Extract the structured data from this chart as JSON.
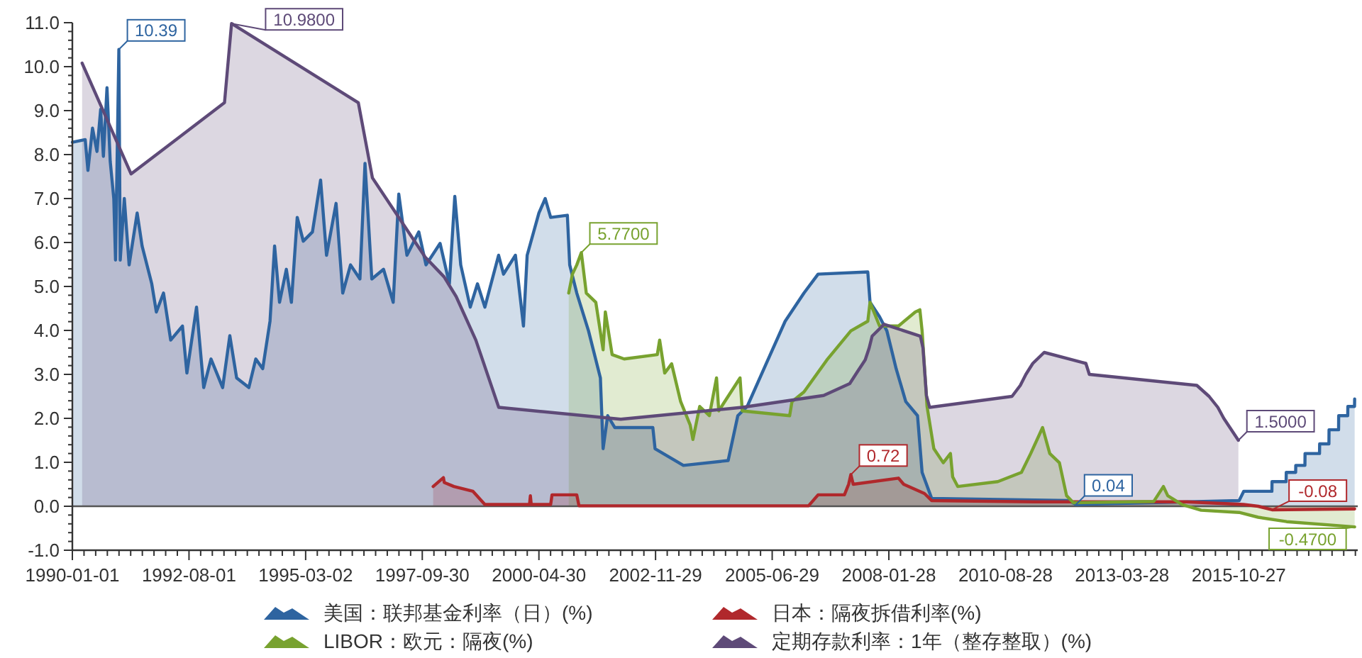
{
  "chart_data": {
    "type": "area",
    "xlim": [
      "1990-01-01",
      "2018-06-15"
    ],
    "ylim": [
      -1,
      11
    ],
    "xticks": [
      "1990-01-01",
      "1992-08-01",
      "1995-03-02",
      "1997-09-30",
      "2000-04-30",
      "2002-11-29",
      "2005-06-29",
      "2008-01-28",
      "2010-08-28",
      "2013-03-28",
      "2015-10-27"
    ],
    "yticks": [
      {
        "value": -1,
        "label": "-1.0"
      },
      {
        "value": 0,
        "label": "0.0"
      },
      {
        "value": 1,
        "label": "1.0"
      },
      {
        "value": 2,
        "label": "2.0"
      },
      {
        "value": 3,
        "label": "3.0"
      },
      {
        "value": 4,
        "label": "4.0"
      },
      {
        "value": 5,
        "label": "5.0"
      },
      {
        "value": 6,
        "label": "6.0"
      },
      {
        "value": 7,
        "label": "7.0"
      },
      {
        "value": 8,
        "label": "8.0"
      },
      {
        "value": 9,
        "label": "9.0"
      },
      {
        "value": 10,
        "label": "10.0"
      },
      {
        "value": 11,
        "label": "11.0"
      }
    ],
    "legend": "bottom",
    "ref_lines": [
      {
        "axis": "y",
        "value": 0,
        "color": "#555555"
      }
    ],
    "series": [
      {
        "name": "美国：联邦基金利率（日）(%)",
        "color": "#2e64a0",
        "x": [
          "1990-01-01",
          "1990-04-15",
          "1990-05-07",
          "1990-06-13",
          "1990-07-19",
          "1990-08-18",
          "1990-09-09",
          "1990-10-08",
          "1990-11-03",
          "1990-12-02",
          "1990-12-16",
          "1991-01-12",
          "1991-01-23",
          "1991-02-25",
          "1991-04-05",
          "1991-06-09",
          "1991-07-19",
          "1991-10-05",
          "1991-11-11",
          "1992-01-08",
          "1992-03-06",
          "1992-06-09",
          "1992-07-15",
          "1992-10-01",
          "1992-11-28",
          "1993-01-26",
          "1993-04-30",
          "1993-06-27",
          "1993-08-21",
          "1993-11-28",
          "1994-01-23",
          "1994-03-20",
          "1994-05-18",
          "1994-06-24",
          "1994-08-03",
          "1994-09-27",
          "1994-11-07",
          "1994-12-24",
          "1995-02-11",
          "1995-04-26",
          "1995-07-01",
          "1995-08-18",
          "1995-11-03",
          "1995-12-27",
          "1996-02-28",
          "1996-05-14",
          "1996-06-24",
          "1996-08-18",
          "1996-11-21",
          "1997-02-07",
          "1997-03-24",
          "1997-05-29",
          "1997-09-02",
          "1997-10-30",
          "1998-02-21",
          "1998-05-07",
          "1998-06-20",
          "1998-08-07",
          "1998-10-23",
          "1998-12-20",
          "1999-02-18",
          "1999-06-09",
          "1999-07-19",
          "1999-10-23",
          "1999-12-27",
          "2000-01-26",
          "2000-04-30",
          "2000-06-20",
          "2000-08-03",
          "2000-12-16",
          "2001-01-04",
          "2001-03-02",
          "2001-06-05",
          "2001-09-09",
          "2001-10-01",
          "2001-11-07",
          "2002-01-04",
          "2002-11-07",
          "2002-11-25",
          "2003-07-12",
          "2004-07-08",
          "2004-09-24",
          "2004-12-09",
          "2005-05-11",
          "2005-10-12",
          "2006-03-13",
          "2006-07-05",
          "2007-08-11",
          "2007-08-29",
          "2007-11-14",
          "2008-01-12",
          "2008-03-27",
          "2008-06-13",
          "2008-09-16",
          "2008-10-23",
          "2009-01-08",
          "2012-01-23",
          "2012-03-20",
          "2015-10-30",
          "2015-12-06",
          "2016-07-21",
          "2016-07-22",
          "2016-11-13",
          "2016-11-14",
          "2017-01-29",
          "2017-01-30",
          "2017-04-14",
          "2017-04-15",
          "2017-08-10",
          "2017-08-11",
          "2017-10-25",
          "2017-10-26",
          "2018-01-11",
          "2018-01-12",
          "2018-03-26",
          "2018-03-27",
          "2018-05-20",
          "2018-05-21"
        ],
        "values": [
          8.28,
          8.34,
          7.64,
          8.6,
          8.07,
          9.03,
          7.96,
          9.52,
          7.85,
          7.0,
          5.6,
          10.39,
          5.6,
          7.0,
          5.49,
          6.67,
          5.92,
          5.06,
          4.42,
          4.85,
          3.78,
          4.1,
          3.03,
          4.53,
          2.7,
          3.35,
          2.7,
          3.88,
          2.92,
          2.7,
          3.35,
          3.13,
          4.21,
          5.92,
          4.64,
          5.39,
          4.64,
          6.57,
          6.03,
          6.24,
          7.42,
          5.71,
          6.89,
          4.85,
          5.49,
          5.17,
          7.8,
          5.17,
          5.39,
          4.64,
          7.1,
          5.71,
          6.24,
          5.49,
          5.98,
          5.06,
          7.05,
          5.49,
          4.53,
          5.06,
          4.53,
          5.71,
          5.28,
          5.71,
          4.1,
          5.71,
          6.67,
          7.0,
          6.57,
          6.62,
          5.49,
          4.85,
          3.99,
          2.92,
          1.31,
          2.06,
          1.79,
          1.79,
          1.31,
          0.93,
          1.04,
          2.06,
          2.27,
          3.24,
          4.21,
          4.85,
          5.28,
          5.33,
          4.64,
          4.31,
          3.99,
          3.13,
          2.38,
          2.06,
          0.77,
          0.18,
          0.13,
          0.04,
          0.13,
          0.34,
          0.34,
          0.56,
          0.56,
          0.77,
          0.77,
          0.93,
          0.93,
          1.2,
          1.2,
          1.42,
          1.42,
          1.74,
          1.74,
          2.06,
          2.06,
          2.27,
          2.27,
          2.44
        ]
      },
      {
        "name": "日本：隔夜拆借利率(%)",
        "color": "#b0282c",
        "x": [
          "1997-12-27",
          "1998-03-20",
          "1998-03-27",
          "1998-06-13",
          "1998-11-14",
          "1999-02-18",
          "2000-02-14",
          "2000-02-21",
          "2000-02-28",
          "2000-08-03",
          "2000-08-14",
          "2001-03-02",
          "2001-03-20",
          "2006-04-19",
          "2006-07-05",
          "2007-02-03",
          "2007-03-09",
          "2007-03-27",
          "2007-04-15",
          "2008-04-15",
          "2008-05-27",
          "2008-11-11",
          "2009-01-08",
          "2011-04-19",
          "2014-09-02",
          "2015-12-06",
          "2016-04-01",
          "2016-07-22",
          "2018-05-21"
        ],
        "values": [
          0.45,
          0.65,
          0.54,
          0.45,
          0.34,
          0.04,
          0.04,
          0.24,
          0.04,
          0.04,
          0.26,
          0.26,
          0.01,
          0.01,
          0.26,
          0.26,
          0.5,
          0.72,
          0.5,
          0.64,
          0.5,
          0.29,
          0.13,
          0.1,
          0.1,
          0.04,
          0,
          -0.08,
          -0.06
        ]
      },
      {
        "name": "LIBOR：欧元：隔夜(%)",
        "color": "#78a22f",
        "x": [
          "2000-12-27",
          "2001-01-26",
          "2001-03-02",
          "2001-04-08",
          "2001-05-18",
          "2001-08-03",
          "2001-10-01",
          "2001-10-19",
          "2001-12-13",
          "2002-03-20",
          "2002-12-13",
          "2003-01-01",
          "2003-02-11",
          "2003-04-08",
          "2003-06-20",
          "2003-09-05",
          "2003-09-27",
          "2003-11-21",
          "2004-02-07",
          "2004-04-05",
          "2004-04-23",
          "2004-10-12",
          "2004-10-30",
          "2005-11-17",
          "2005-12-06",
          "2006-03-13",
          "2006-09-20",
          "2007-03-27",
          "2007-08-11",
          "2007-08-29",
          "2007-11-14",
          "2008-04-15",
          "2008-08-29",
          "2008-10-05",
          "2008-10-23",
          "2008-12-02",
          "2009-01-26",
          "2009-04-12",
          "2009-06-09",
          "2009-06-27",
          "2009-08-07",
          "2010-06-27",
          "2011-01-04",
          "2011-03-20",
          "2011-06-24",
          "2011-08-21",
          "2011-11-07",
          "2012-01-04",
          "2012-02-28",
          "2013-12-09",
          "2014-02-25",
          "2014-04-01",
          "2014-07-26",
          "2014-12-27",
          "2015-10-30",
          "2016-04-01",
          "2016-11-17",
          "2018-05-21"
        ],
        "values": [
          4.85,
          5.28,
          5.49,
          5.77,
          4.85,
          4.64,
          3.56,
          4.42,
          3.45,
          3.35,
          3.45,
          3.78,
          3.03,
          3.24,
          2.38,
          1.85,
          1.52,
          2.27,
          2.06,
          2.92,
          2.17,
          2.92,
          2.17,
          2.06,
          2.38,
          2.6,
          3.35,
          3.99,
          4.21,
          4.64,
          4.1,
          4.1,
          4.42,
          4.47,
          3.99,
          2.27,
          1.31,
          0.99,
          1.2,
          0.67,
          0.45,
          0.56,
          0.77,
          1.2,
          1.79,
          1.2,
          0.99,
          0.24,
          0.08,
          0.11,
          0.45,
          0.24,
          0.04,
          -0.09,
          -0.14,
          -0.25,
          -0.35,
          -0.47
        ]
      },
      {
        "name": "定期存款利率：1年（整存整取）(%)",
        "color": "#5e4a78",
        "x": [
          "1990-03-21",
          "1991-04-21",
          "1993-05-15",
          "1993-07-11",
          "1996-05-01",
          "1996-08-23",
          "1997-10-23",
          "1998-03-25",
          "1998-07-01",
          "1998-12-07",
          "1999-06-10",
          "2002-02-21",
          "2004-10-29",
          "2006-08-19",
          "2007-03-18",
          "2007-05-19",
          "2007-07-21",
          "2007-08-22",
          "2007-09-15",
          "2007-12-21",
          "2008-10-09",
          "2008-10-30",
          "2008-11-27",
          "2008-12-23",
          "2010-10-20",
          "2010-12-26",
          "2011-02-09",
          "2011-04-06",
          "2011-07-07",
          "2012-06-08",
          "2012-07-06",
          "2014-11-22",
          "2015-03-01",
          "2015-05-11",
          "2015-06-28",
          "2015-08-26",
          "2015-10-24"
        ],
        "values": [
          10.08,
          7.56,
          9.18,
          10.98,
          9.18,
          7.47,
          5.67,
          5.22,
          4.77,
          3.78,
          2.25,
          1.98,
          2.25,
          2.52,
          2.79,
          3.06,
          3.33,
          3.6,
          3.87,
          4.14,
          3.87,
          3.6,
          2.52,
          2.25,
          2.5,
          2.75,
          3.0,
          3.25,
          3.5,
          3.25,
          3.0,
          2.75,
          2.5,
          2.25,
          2.0,
          1.75,
          1.5
        ]
      }
    ],
    "annotations": [
      {
        "text": "10.39",
        "x": "1991-01-12",
        "y": 10.39
      },
      {
        "text": "10.9800",
        "x": "1993-07-11",
        "y": 10.98
      },
      {
        "text": "5.7700",
        "x": "2001-04-08",
        "y": 5.77
      },
      {
        "text": "0.72",
        "x": "2007-03-27",
        "y": 0.72
      },
      {
        "text": "0.04",
        "x": "2012-03-20",
        "y": 0.04
      },
      {
        "text": "1.5000",
        "x": "2015-10-24",
        "y": 1.5
      },
      {
        "text": "-0.08",
        "x": "2016-07-22",
        "y": -0.08
      },
      {
        "text": "-0.4700",
        "x": "2018-05-21",
        "y": -0.47
      }
    ]
  }
}
